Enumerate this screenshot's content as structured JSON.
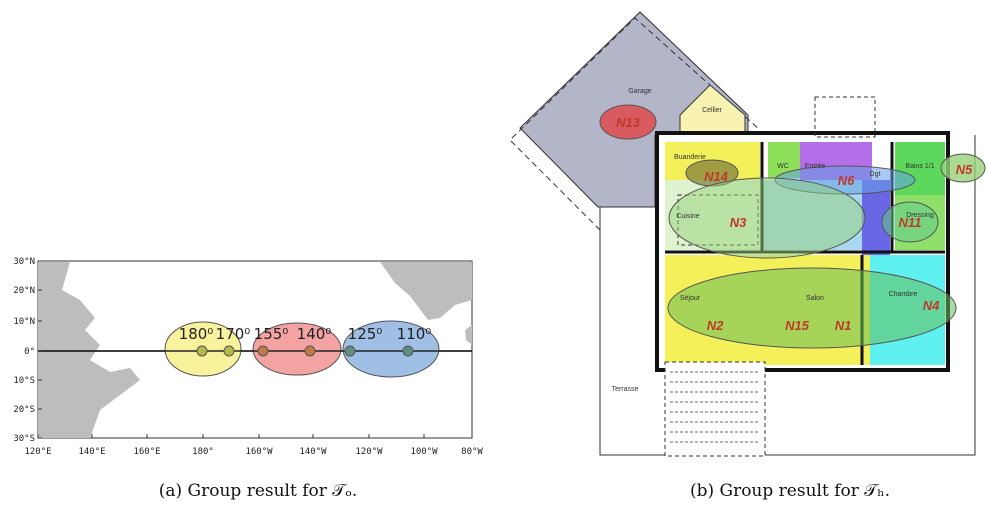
{
  "panel_a": {
    "lat_labels": [
      "30°N",
      "20°N",
      "10°N",
      "0°",
      "10°S",
      "20°S",
      "30°S"
    ],
    "lon_labels": [
      "120°E",
      "140°E",
      "160°E",
      "180°",
      "160°W",
      "140°W",
      "120°W",
      "100°W",
      "80°W"
    ],
    "groups": [
      {
        "labels": [
          "180⁰",
          "170⁰"
        ]
      },
      {
        "labels": [
          "155⁰",
          "140⁰"
        ]
      },
      {
        "labels": [
          "125⁰",
          "110⁰"
        ]
      }
    ],
    "caption": "(a) Group result for 𝒯ₒ."
  },
  "panel_b": {
    "rooms": [
      "Garage",
      "Cellier",
      "Buanderie",
      "WC",
      "Entrée",
      "Dgt",
      "Bains 1/1",
      "Dressing",
      "Cuisine",
      "Séjour",
      "Salon",
      "Chambre",
      "Terrasse"
    ],
    "nodes": [
      "N13",
      "N14",
      "N6",
      "N5",
      "N3",
      "N11",
      "N2",
      "N15",
      "N1",
      "N4"
    ],
    "caption": "(b) Group result for 𝒯ₕ."
  }
}
